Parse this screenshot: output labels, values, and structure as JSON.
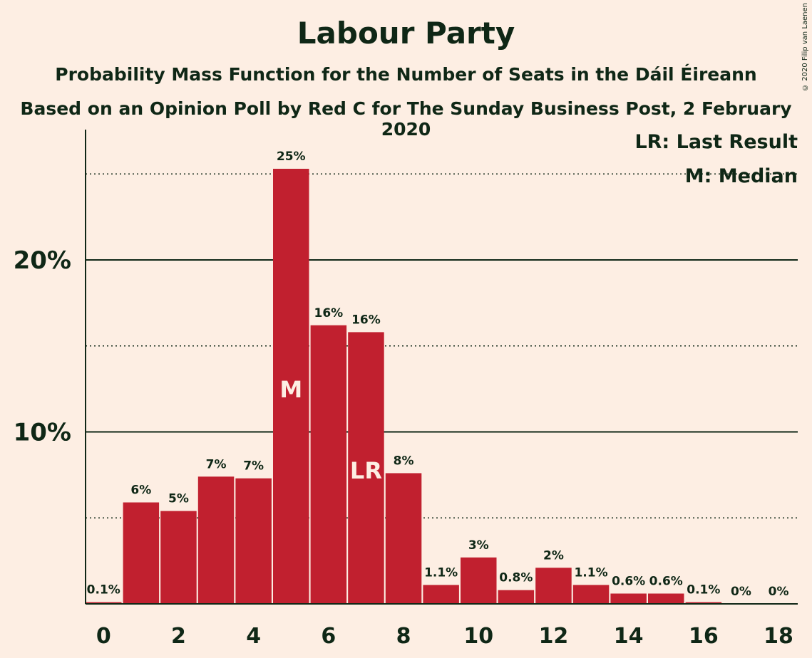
{
  "title": "Labour Party",
  "subtitle1": "Probability Mass Function for the Number of Seats in the Dáil Éireann",
  "subtitle2": "Based on an Opinion Poll by Red C for The Sunday Business Post, 2 February 2020",
  "copyright": "© 2020 Filip van Laenen",
  "legend": {
    "last_result": "LR: Last Result",
    "median": "M: Median"
  },
  "colors": {
    "bar": "#C1202F",
    "background": "#FDEEE3",
    "text": "#0F2716"
  },
  "chart_data": {
    "type": "bar",
    "categories": [
      0,
      1,
      2,
      3,
      4,
      5,
      6,
      7,
      8,
      9,
      10,
      11,
      12,
      13,
      14,
      15,
      16,
      17,
      18
    ],
    "values": [
      0.1,
      5.9,
      5.4,
      7.4,
      7.3,
      25.3,
      16.2,
      15.8,
      7.6,
      1.1,
      2.7,
      0.8,
      2.1,
      1.1,
      0.6,
      0.6,
      0.1,
      0,
      0
    ],
    "labels": [
      "0.1%",
      "6%",
      "5%",
      "7%",
      "7%",
      "25%",
      "16%",
      "16%",
      "8%",
      "1.1%",
      "3%",
      "0.8%",
      "2%",
      "1.1%",
      "0.6%",
      "0.6%",
      "0.1%",
      "0%",
      "0%"
    ],
    "x_tick_labels": [
      "0",
      "2",
      "4",
      "6",
      "8",
      "10",
      "12",
      "14",
      "16",
      "18"
    ],
    "y_tick_labels": [
      "10%",
      "20%"
    ],
    "ylim": [
      0,
      27
    ],
    "gridlines_solid": [
      10,
      20
    ],
    "gridlines_dotted": [
      5,
      15,
      25
    ],
    "median_seat": 5,
    "median_label": "M",
    "last_result_seat": 7,
    "last_result_label": "LR"
  }
}
